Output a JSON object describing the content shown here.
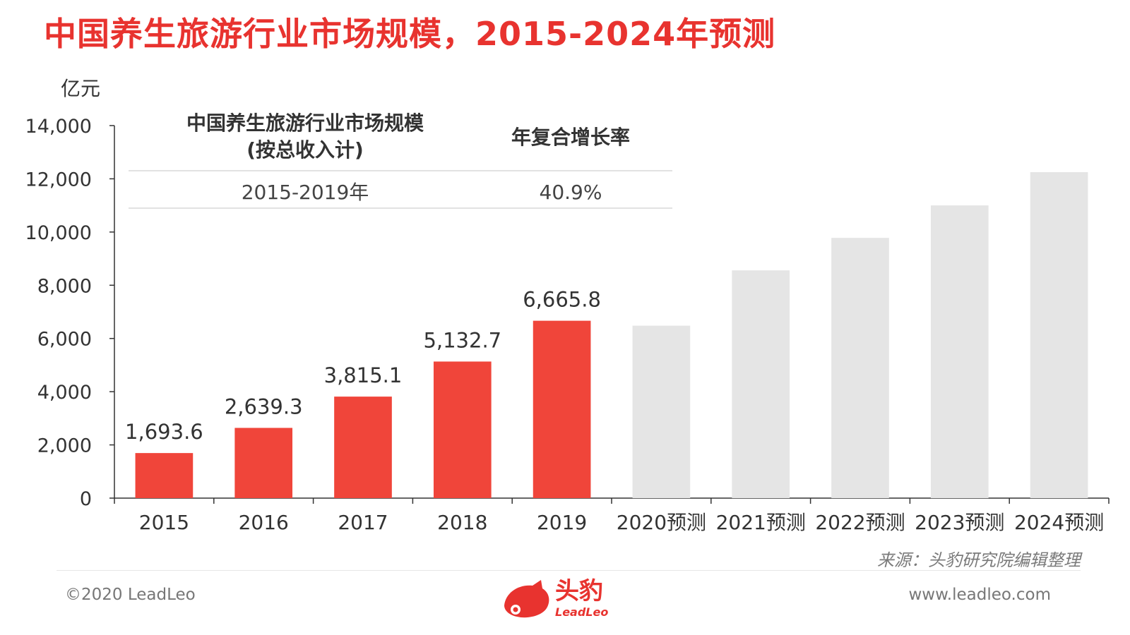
{
  "title": "中国养生旅游行业市场规模，2015-2024年预测",
  "unit_label": "亿元",
  "table": {
    "col1_header_line1": "中国养生旅游行业市场规模",
    "col1_header_line2": "(按总收入计)",
    "col2_header": "年复合增长率",
    "rows": [
      {
        "period": "2015-2019年",
        "cagr": "40.9%"
      }
    ]
  },
  "chart_data": {
    "type": "bar",
    "categories": [
      "2015",
      "2016",
      "2017",
      "2018",
      "2019",
      "2020预测",
      "2021预测",
      "2022预测",
      "2023预测",
      "2024预测"
    ],
    "values": [
      1693.6,
      2639.3,
      3815.1,
      5132.7,
      6665.8,
      6480,
      8560,
      9780,
      11000,
      12250
    ],
    "value_labels": [
      "1,693.6",
      "2,639.3",
      "3,815.1",
      "5,132.7",
      "6,665.8",
      "",
      "",
      "",
      "",
      ""
    ],
    "forecast_from_index": 5,
    "ylim": [
      0,
      14000
    ],
    "yticks": [
      0,
      2000,
      4000,
      6000,
      8000,
      10000,
      12000,
      14000
    ],
    "ytick_labels": [
      "0",
      "2,000",
      "4,000",
      "6,000",
      "8,000",
      "10,000",
      "12,000",
      "14,000"
    ],
    "colors": {
      "actual": "#f0453a",
      "forecast": "#e5e5e5",
      "axis": "#333333"
    },
    "grid": false,
    "legend": "none"
  },
  "source": "来源：头豹研究院编辑整理",
  "footer": {
    "copyright": "©2020 LeadLeo",
    "website": "www.leadleo.com",
    "logo_text": "头豹",
    "logo_sub": "LeadLeo"
  }
}
